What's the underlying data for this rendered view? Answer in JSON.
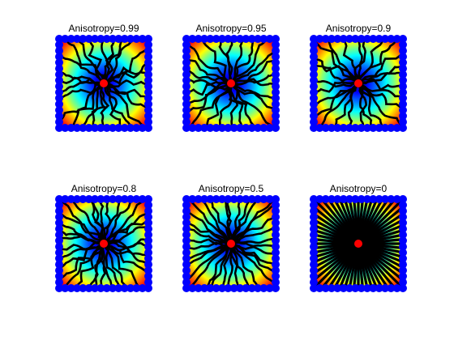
{
  "figure": {
    "panels": [
      {
        "title": "Anisotropy=0.99",
        "anisotropy": 0.99
      },
      {
        "title": "Anisotropy=0.95",
        "anisotropy": 0.95
      },
      {
        "title": "Anisotropy=0.9",
        "anisotropy": 0.9
      },
      {
        "title": "Anisotropy=0.8",
        "anisotropy": 0.8
      },
      {
        "title": "Anisotropy=0.5",
        "anisotropy": 0.5
      },
      {
        "title": "Anisotropy=0",
        "anisotropy": 0
      }
    ]
  },
  "colors": {
    "boundary_dots": "#0000ff",
    "seed_point": "#ff0000",
    "paths": "#000000",
    "colormap": [
      "#00007f",
      "#0000ff",
      "#007fff",
      "#00ffff",
      "#7fff7f",
      "#ffff00",
      "#ff7f00",
      "#ff0000",
      "#7f0000"
    ]
  }
}
